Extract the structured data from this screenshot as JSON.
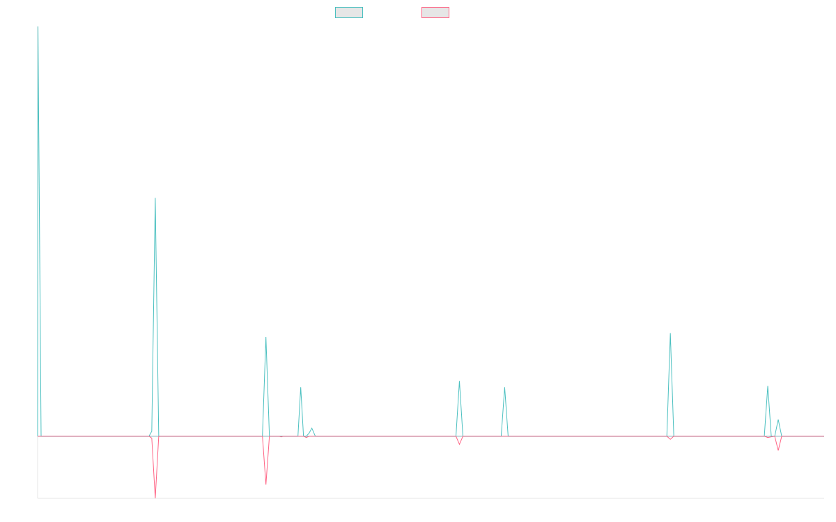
{
  "chart_data": {
    "type": "line",
    "title": "",
    "xlabel": "",
    "ylabel": "",
    "legend_position": "top-center",
    "grid": false,
    "xlim": [
      0,
      1130
    ],
    "ylim": [
      -1.0,
      6.6
    ],
    "baseline": 0,
    "series": [
      {
        "color": "#4bc0c0",
        "points": [
          [
            0,
            0
          ],
          [
            0.5,
            6.6
          ],
          [
            5,
            0
          ],
          [
            160,
            0
          ],
          [
            164,
            0.08
          ],
          [
            169,
            3.84
          ],
          [
            174,
            0
          ],
          [
            323,
            0
          ],
          [
            328,
            1.6
          ],
          [
            333,
            0
          ],
          [
            374,
            0
          ],
          [
            378,
            0.79
          ],
          [
            382,
            0
          ],
          [
            386,
            0
          ],
          [
            390,
            0.05
          ],
          [
            394,
            0.13
          ],
          [
            399,
            0
          ],
          [
            601,
            0
          ],
          [
            606,
            0.89
          ],
          [
            611,
            0
          ],
          [
            666,
            0
          ],
          [
            671,
            0.79
          ],
          [
            676,
            0
          ],
          [
            904,
            0
          ],
          [
            909,
            1.66
          ],
          [
            914,
            0
          ],
          [
            1044,
            0
          ],
          [
            1049,
            0.81
          ],
          [
            1054,
            0
          ],
          [
            1059,
            0
          ],
          [
            1064,
            0.27
          ],
          [
            1069,
            0
          ],
          [
            1130,
            0
          ]
        ]
      },
      {
        "color": "#ff6384",
        "points": [
          [
            0,
            0
          ],
          [
            160,
            0
          ],
          [
            164,
            -0.03
          ],
          [
            169,
            -1.0
          ],
          [
            174,
            0
          ],
          [
            323,
            0
          ],
          [
            328,
            -0.78
          ],
          [
            333,
            0
          ],
          [
            347,
            0
          ],
          [
            350,
            -0.01
          ],
          [
            353,
            0
          ],
          [
            382,
            0
          ],
          [
            386,
            -0.02
          ],
          [
            390,
            0
          ],
          [
            601,
            0
          ],
          [
            606,
            -0.13
          ],
          [
            611,
            0
          ],
          [
            904,
            0
          ],
          [
            909,
            -0.05
          ],
          [
            914,
            0
          ],
          [
            1044,
            0
          ],
          [
            1049,
            -0.02
          ],
          [
            1054,
            -0.01
          ],
          [
            1059,
            0
          ],
          [
            1064,
            -0.23
          ],
          [
            1069,
            0
          ],
          [
            1130,
            0
          ]
        ]
      }
    ]
  }
}
